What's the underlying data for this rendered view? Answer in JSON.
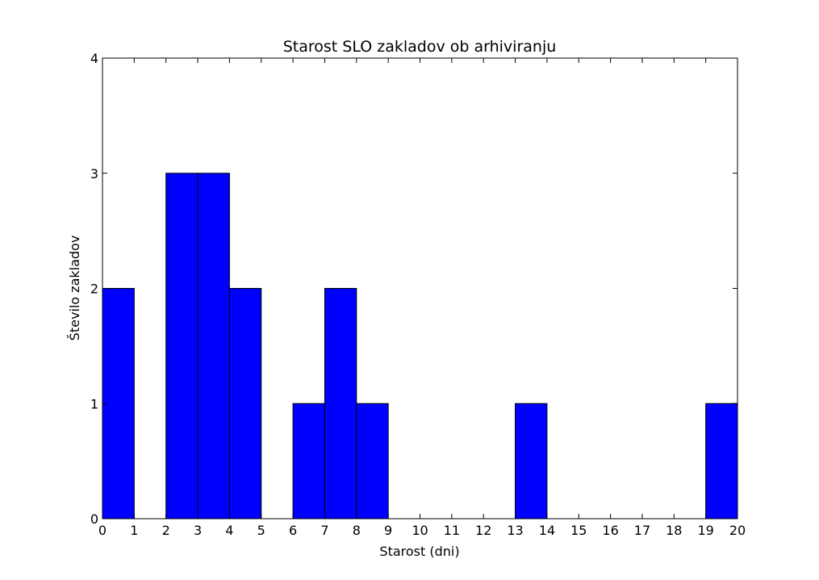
{
  "chart_data": {
    "type": "bar",
    "title": "Starost SLO zakladov ob arhiviranju",
    "xlabel": "Starost (dni)",
    "ylabel": "Število zakladov",
    "xlim": [
      0,
      20
    ],
    "ylim": [
      0,
      4
    ],
    "x_ticks": [
      "0",
      "1",
      "2",
      "3",
      "4",
      "5",
      "6",
      "7",
      "8",
      "9",
      "10",
      "11",
      "12",
      "13",
      "14",
      "15",
      "16",
      "17",
      "18",
      "19",
      "20"
    ],
    "y_ticks": [
      "0",
      "1",
      "2",
      "3",
      "4"
    ],
    "bins": [
      {
        "start": 0,
        "end": 1,
        "value": 2
      },
      {
        "start": 1,
        "end": 2,
        "value": 0
      },
      {
        "start": 2,
        "end": 3,
        "value": 3
      },
      {
        "start": 3,
        "end": 4,
        "value": 3
      },
      {
        "start": 4,
        "end": 5,
        "value": 2
      },
      {
        "start": 5,
        "end": 6,
        "value": 0
      },
      {
        "start": 6,
        "end": 7,
        "value": 1
      },
      {
        "start": 7,
        "end": 8,
        "value": 2
      },
      {
        "start": 8,
        "end": 9,
        "value": 1
      },
      {
        "start": 9,
        "end": 10,
        "value": 0
      },
      {
        "start": 10,
        "end": 11,
        "value": 0
      },
      {
        "start": 11,
        "end": 12,
        "value": 0
      },
      {
        "start": 12,
        "end": 13,
        "value": 0
      },
      {
        "start": 13,
        "end": 14,
        "value": 1
      },
      {
        "start": 14,
        "end": 15,
        "value": 0
      },
      {
        "start": 15,
        "end": 16,
        "value": 0
      },
      {
        "start": 16,
        "end": 17,
        "value": 0
      },
      {
        "start": 17,
        "end": 18,
        "value": 0
      },
      {
        "start": 18,
        "end": 19,
        "value": 0
      },
      {
        "start": 19,
        "end": 20,
        "value": 1
      }
    ],
    "bar_color": "#0000ff",
    "edge_color": "#000000",
    "grid": false,
    "legend": "none"
  }
}
